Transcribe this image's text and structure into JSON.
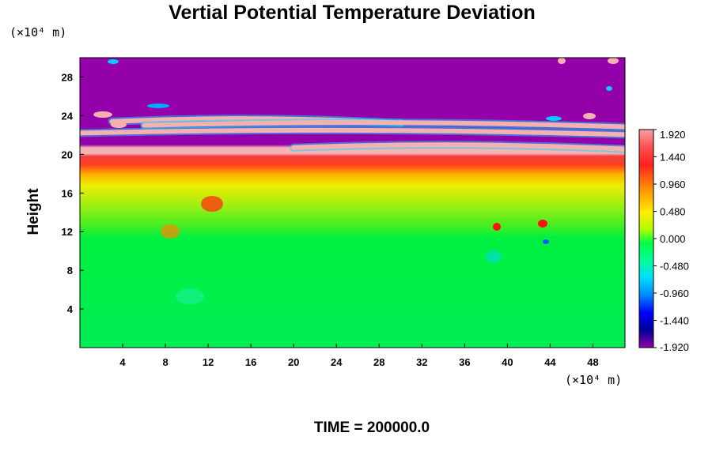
{
  "chart_data": {
    "type": "heatmap",
    "title": "Vertial Potential Temperature Deviation",
    "ylabel": "Height",
    "x_unit": "(×10⁴ m)",
    "y_unit": "(×10⁴ m)",
    "xlim": [
      0,
      51
    ],
    "ylim": [
      0,
      30
    ],
    "x_ticks": [
      "4",
      "8",
      "12",
      "16",
      "20",
      "24",
      "28",
      "32",
      "36",
      "40",
      "44",
      "48"
    ],
    "y_ticks": [
      "4",
      "8",
      "12",
      "16",
      "20",
      "24",
      "28"
    ],
    "x_tick_values": [
      4,
      8,
      12,
      16,
      20,
      24,
      28,
      32,
      36,
      40,
      44,
      48
    ],
    "y_tick_values": [
      4,
      8,
      12,
      16,
      20,
      24,
      28
    ],
    "colorbar": {
      "range": [
        -1.92,
        1.92
      ],
      "tick_labels": [
        "1.920",
        "1.440",
        "0.960",
        "0.480",
        "0.000",
        "-0.480",
        "-0.960",
        "-1.440",
        "-1.920"
      ],
      "tick_values": [
        1.92,
        1.44,
        0.96,
        0.48,
        0.0,
        -0.48,
        -0.96,
        -1.44,
        -1.92
      ]
    },
    "field_description": [
      {
        "height_range": [
          0,
          12
        ],
        "value": 0.0
      },
      {
        "height_range": [
          12,
          16
        ],
        "value": 0.35
      },
      {
        "height_range": [
          16,
          18
        ],
        "value": 0.8
      },
      {
        "height_range": [
          18,
          20
        ],
        "value": 1.6
      },
      {
        "height_range": [
          20,
          21
        ],
        "value": 1.92
      },
      {
        "height_range": [
          21,
          30
        ],
        "value": -1.92
      }
    ],
    "bands": [
      {
        "x_range": [
          3,
          30
        ],
        "y": 23.4,
        "value": 1.92
      },
      {
        "x_range": [
          0,
          51
        ],
        "y": 22.2,
        "value": 1.92
      },
      {
        "x_range": [
          20,
          51
        ],
        "y": 20.7,
        "value": 1.92
      },
      {
        "x_range": [
          6,
          51
        ],
        "y": 23.0,
        "value": 1.92
      }
    ],
    "colors": {
      "violet": "#9400aa",
      "pink": "#f5b0b0",
      "red": "#ff2020",
      "orange": "#ff8c00",
      "yellow": "#ffff00",
      "green": "#00ff44",
      "cyan": "#00ffcc",
      "blue": "#0000ff"
    }
  },
  "footer": {
    "time_label": "TIME = 200000.0"
  }
}
